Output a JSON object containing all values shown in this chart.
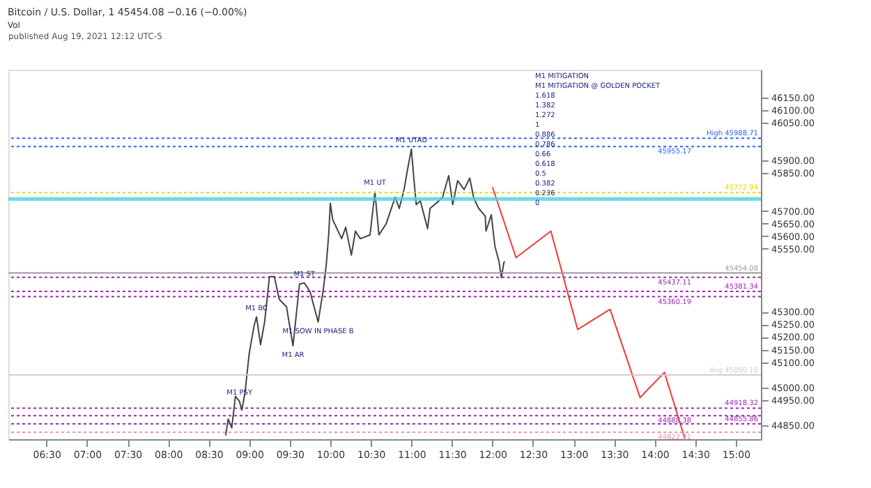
{
  "chart_data": {
    "type": "line",
    "title": "Bitcoin / U.S. Dollar, 1  45454.08  −0.16 (−0.00%)",
    "subtitle": "Vol",
    "series": [
      {
        "type": "line",
        "color": "#444444",
        "line_style": "solid",
        "x": [
          8.71,
          8.74,
          8.785,
          8.83,
          8.88,
          8.91,
          8.95,
          9.0,
          9.06,
          9.09,
          9.14,
          9.19,
          9.25,
          9.31,
          9.37,
          9.46,
          9.54,
          9.62,
          9.68,
          9.75,
          9.85,
          9.91,
          9.95,
          9.98,
          10.0,
          10.03,
          10.14,
          10.19,
          10.26,
          10.31,
          10.37,
          10.49,
          10.55,
          10.6,
          10.69,
          10.8,
          10.85,
          10.91,
          10.95,
          11.0,
          11.03,
          11.06,
          11.11,
          11.2,
          11.23,
          11.34,
          11.385,
          11.46,
          11.51,
          11.57,
          11.65,
          11.72,
          11.77,
          11.83,
          11.91,
          11.92,
          11.985,
          12.03,
          12.08,
          12.11,
          12.14,
          12.15
        ],
        "values": [
          44810,
          44875,
          44840,
          44965,
          44945,
          44910,
          44985,
          45135,
          45245,
          45280,
          45170,
          45260,
          45440,
          45440,
          45350,
          45320,
          45165,
          45410,
          45415,
          45380,
          45260,
          45380,
          45485,
          45605,
          45730,
          45665,
          45590,
          45635,
          45525,
          45620,
          45590,
          45605,
          45775,
          45605,
          45650,
          45755,
          45710,
          45785,
          45860,
          45945,
          45830,
          45725,
          45740,
          45630,
          45710,
          45740,
          45755,
          45840,
          45725,
          45820,
          45785,
          45830,
          45750,
          45710,
          45680,
          45620,
          45685,
          45560,
          45500,
          45435,
          45495,
          45500
        ]
      },
      {
        "type": "line",
        "color": "#f23a2e",
        "line_style": "solid",
        "x": [
          12.0,
          12.29,
          12.72,
          13.05,
          13.45,
          13.82,
          14.12,
          14.37
        ],
        "values": [
          45795,
          45515,
          45620,
          45230,
          45310,
          44960,
          45060,
          44800
        ]
      }
    ],
    "xlim": [
      6.03,
      15.31
    ],
    "ylim": [
      44795,
      46260
    ],
    "xticks": [
      {
        "value": 6.5,
        "label": "06:30"
      },
      {
        "value": 7,
        "label": "07:00"
      },
      {
        "value": 7.5,
        "label": "07:30"
      },
      {
        "value": 8,
        "label": "08:00"
      },
      {
        "value": 8.5,
        "label": "08:30"
      },
      {
        "value": 9,
        "label": "09:00"
      },
      {
        "value": 9.5,
        "label": "09:30"
      },
      {
        "value": 10,
        "label": "10:00"
      },
      {
        "value": 10.5,
        "label": "10:30"
      },
      {
        "value": 11,
        "label": "11:00"
      },
      {
        "value": 11.5,
        "label": "11:30"
      },
      {
        "value": 12,
        "label": "12:00"
      },
      {
        "value": 12.5,
        "label": "12:30"
      },
      {
        "value": 13,
        "label": "13:00"
      },
      {
        "value": 13.5,
        "label": "13:30"
      },
      {
        "value": 14,
        "label": "14:00"
      },
      {
        "value": 14.5,
        "label": "14:30"
      },
      {
        "value": 15,
        "label": "15:00"
      }
    ],
    "yticks": [
      {
        "value": 44850,
        "label": "44850.00"
      },
      {
        "value": 44950,
        "label": "44950.00"
      },
      {
        "value": 45000,
        "label": "45000.00"
      },
      {
        "value": 45100,
        "label": "45100.00"
      },
      {
        "value": 45150,
        "label": "45150.00"
      },
      {
        "value": 45200,
        "label": "45200.00"
      },
      {
        "value": 45250,
        "label": "45250.00"
      },
      {
        "value": 45300,
        "label": "45300.00"
      },
      {
        "value": 45550,
        "label": "45550.00"
      },
      {
        "value": 45600,
        "label": "45600.00"
      },
      {
        "value": 45650,
        "label": "45650.00"
      },
      {
        "value": 45700,
        "label": "45700.00"
      },
      {
        "value": 45850,
        "label": "45850.00"
      },
      {
        "value": 45900,
        "label": "45900.00"
      },
      {
        "value": 46050,
        "label": "46050.00"
      },
      {
        "value": 46100,
        "label": "46100.00"
      },
      {
        "value": 46150,
        "label": "46150.00"
      }
    ],
    "ref_lines": [
      {
        "axis": "y",
        "value": 45988.71,
        "label": "High 45988.71",
        "color": "#2962ff",
        "line_style": "dotted"
      },
      {
        "axis": "y",
        "value": 45955.17,
        "label": "45955.17",
        "color": "#2962ff",
        "line_style": "dotted"
      },
      {
        "axis": "y",
        "value": 45772.94,
        "label": "45772.94",
        "color": "#e8d800",
        "line_style": "dotted"
      },
      {
        "axis": "y",
        "value": 45454.08,
        "label": "45454.08",
        "color": "#999999",
        "line_style": "solid"
      },
      {
        "axis": "y",
        "value": 45437.11,
        "label": "45437.11",
        "color": "#9c27b0",
        "line_style": "dotted"
      },
      {
        "axis": "y",
        "value": 45381.34,
        "label": "45381.34",
        "color": "#9c27b0",
        "line_style": "dotted"
      },
      {
        "axis": "y",
        "value": 45360.19,
        "label": "45360.19",
        "color": "#9c27b0",
        "line_style": "dotted"
      },
      {
        "axis": "y",
        "value": 45050.1,
        "label": "Avg 45050.10",
        "color": "#cccccc",
        "line_style": "solid"
      },
      {
        "axis": "y",
        "value": 44918.32,
        "label": "44918.32",
        "color": "#9c27b0",
        "line_style": "dotted"
      },
      {
        "axis": "y",
        "value": 44888.38,
        "label": "44888.38",
        "color": "#9c27b0",
        "line_style": "dotted"
      },
      {
        "axis": "y",
        "value": 44855.86,
        "label": "44855.86",
        "color": "#9c27b0",
        "line_style": "dotted"
      },
      {
        "axis": "y",
        "value": 44822.31,
        "label": "44822.31",
        "color": "#f48fb1",
        "line_style": "dotted"
      }
    ],
    "bands": [
      {
        "axis": "y",
        "from": 45740,
        "to": 45755,
        "color": "#4dd0e1"
      }
    ],
    "annotations": [
      {
        "text": "M1 UTAD",
        "x": 11.0,
        "y": 45945
      },
      {
        "text": "M1 UT",
        "x": 10.55,
        "y": 45775
      },
      {
        "text": "M1 BC",
        "x": 9.09,
        "y": 45280
      },
      {
        "text": "M1 ST",
        "x": 9.68,
        "y": 45415
      },
      {
        "text": "M1 PSY",
        "x": 8.88,
        "y": 44945
      },
      {
        "text": "M1 SOW IN PHASE B",
        "x": 9.85,
        "y": 45260
      },
      {
        "text": "M1 AR",
        "x": 9.54,
        "y": 45165
      },
      "M1 MITIGATION",
      "M1 MITIGATION @ GOLDEN POCKET",
      "1.618",
      "1.382",
      "1.272",
      "1",
      "0.886",
      "0.786",
      "0.66",
      "0.618",
      "0.5",
      "0.382",
      "0.236",
      "0",
      "published Aug 19, 2021 12:12 UTC-5"
    ],
    "grid": false,
    "legend": false
  }
}
